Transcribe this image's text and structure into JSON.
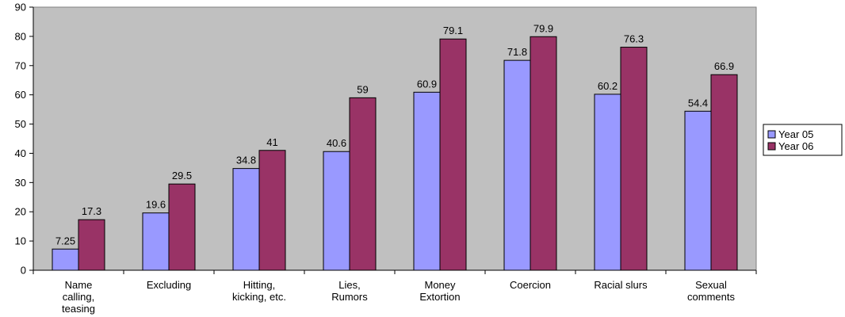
{
  "chart_data": {
    "type": "bar",
    "categories": [
      [
        "Name",
        "calling,",
        "teasing"
      ],
      [
        "Excluding"
      ],
      [
        "Hitting,",
        "kicking, etc."
      ],
      [
        "Lies,",
        "Rumors"
      ],
      [
        "Money",
        "Extortion"
      ],
      [
        "Coercion"
      ],
      [
        "Racial slurs"
      ],
      [
        "Sexual",
        "comments"
      ]
    ],
    "series": [
      {
        "name": "Year 05",
        "values": [
          7.25,
          19.6,
          34.8,
          40.6,
          60.9,
          71.8,
          60.2,
          54.4
        ],
        "labels": [
          "7.25",
          "19.6",
          "34.8",
          "40.6",
          "60.9",
          "71.8",
          "60.2",
          "54.4"
        ],
        "color": "#9999FF"
      },
      {
        "name": "Year 06",
        "values": [
          17.3,
          29.5,
          41,
          59,
          79.1,
          79.9,
          76.3,
          66.9
        ],
        "labels": [
          "17.3",
          "29.5",
          "41",
          "59",
          "79.1",
          "79.9",
          "76.3",
          "66.9"
        ],
        "color": "#993366"
      }
    ],
    "ylim": [
      0,
      90
    ],
    "yticks": [
      0,
      10,
      20,
      30,
      40,
      50,
      60,
      70,
      80,
      90
    ],
    "plot_background": "#C0C0C0",
    "grid": false,
    "legend_position": "right"
  }
}
